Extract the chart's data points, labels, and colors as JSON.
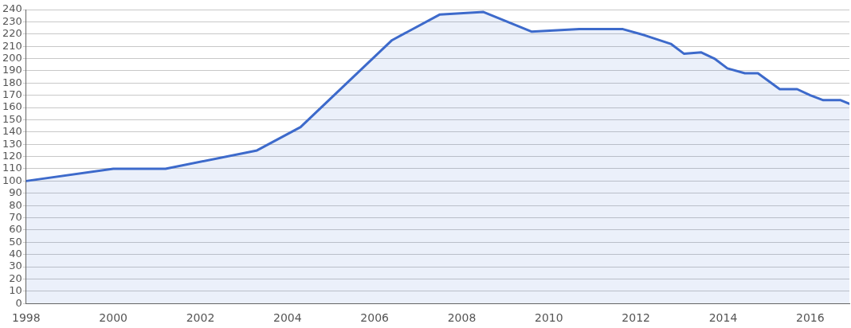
{
  "chart_data": {
    "type": "area",
    "x": [
      1998,
      2000,
      2001.2,
      2003.3,
      2004.3,
      2006.4,
      2007.5,
      2008.5,
      2009.6,
      2010.7,
      2011.7,
      2012.2,
      2012.8,
      2013.1,
      2013.5,
      2013.8,
      2014.1,
      2014.5,
      2014.8,
      2015.3,
      2015.7,
      2016,
      2016.3,
      2016.7,
      2016.9
    ],
    "series": [
      {
        "color": "#3d6acb",
        "values": [
          100,
          110,
          110,
          125,
          144,
          215,
          236,
          238,
          222,
          224,
          224,
          219,
          212,
          204,
          205,
          200,
          192,
          188,
          188,
          175,
          175,
          170,
          166,
          166,
          163
        ]
      }
    ],
    "xlim": [
      1998,
      2016.9
    ],
    "xticks": [
      1998,
      2000,
      2002,
      2004,
      2006,
      2008,
      2010,
      2012,
      2014,
      2016
    ],
    "ylim": [
      0,
      240
    ],
    "yticks": [
      0,
      10,
      20,
      30,
      40,
      50,
      60,
      70,
      80,
      90,
      100,
      110,
      120,
      130,
      140,
      150,
      160,
      170,
      180,
      190,
      200,
      210,
      220,
      230,
      240
    ],
    "grid": "y",
    "marker": "none",
    "line_style": "solid"
  }
}
